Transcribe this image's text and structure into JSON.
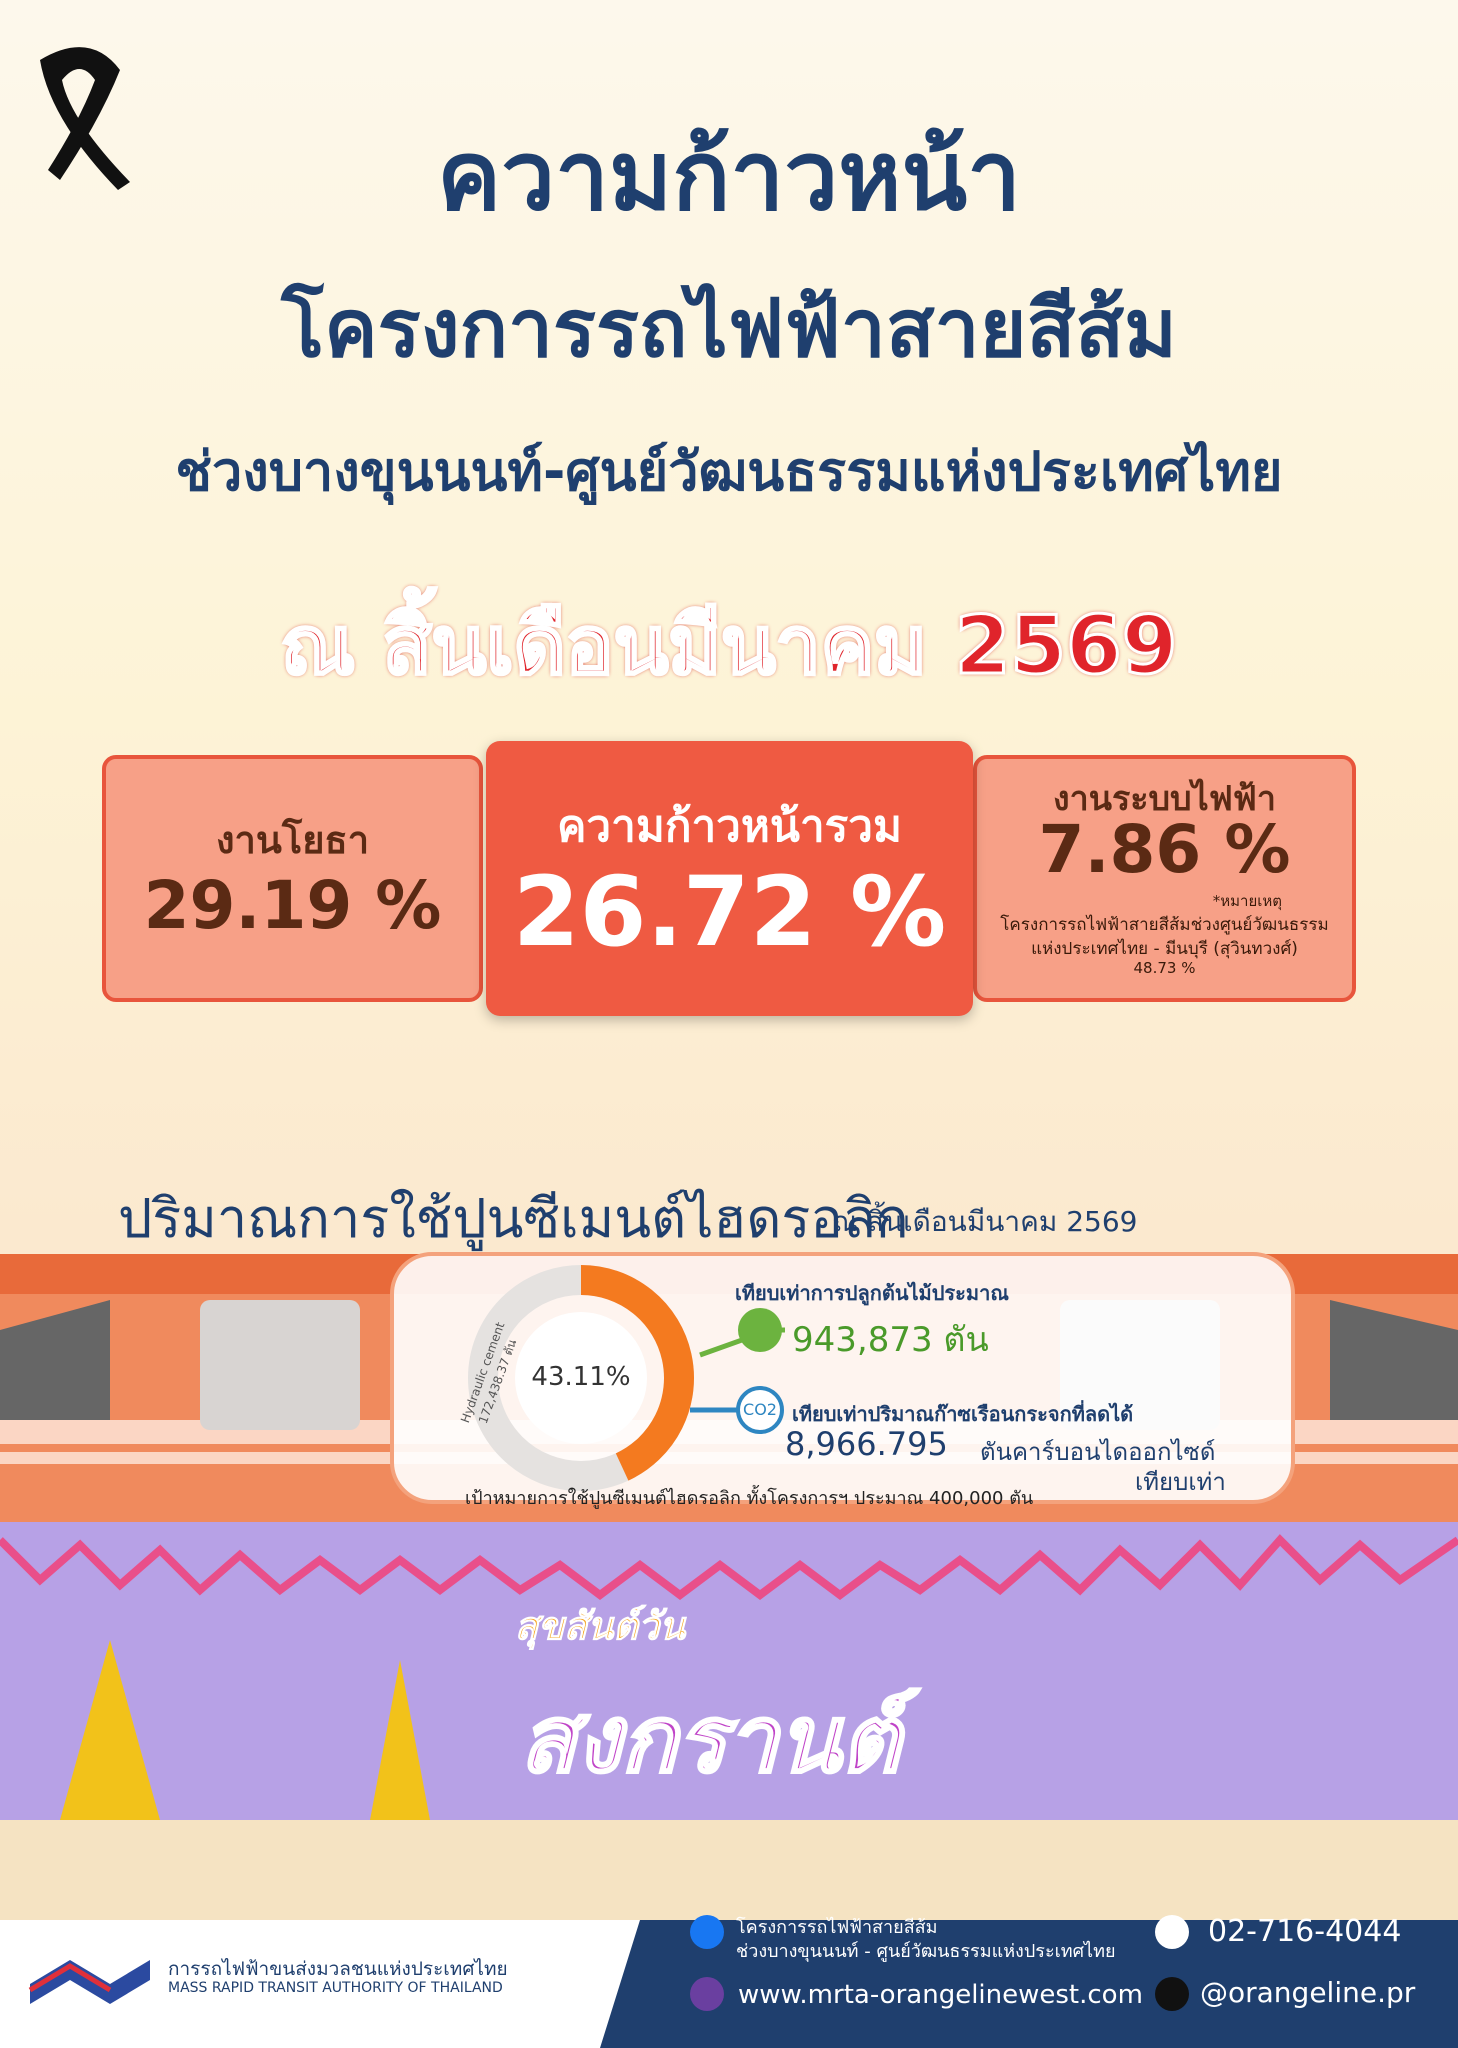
{
  "header": {
    "title_line1": "ความก้าวหน้า",
    "title_line2": "โครงการรถไฟฟ้าสายสีส้ม",
    "title_line3": "ช่วงบางขุนนนท์-ศูนย์วัฒนธรรมแห่งประเทศไทย",
    "date": "ณ สิ้นเดือนมีนาคม 2569"
  },
  "progress": {
    "civil": {
      "label": "งานโยธา",
      "value": "29.19 %"
    },
    "overall": {
      "label": "ความก้าวหน้ารวม",
      "value": "26.72 %"
    },
    "electrical": {
      "label": "งานระบบไฟฟ้า",
      "value": "7.86 %",
      "note_title": "*หมายเหตุ",
      "note_line1": "โครงการรถไฟฟ้าสายสีส้มช่วงศูนย์วัฒนธรรม",
      "note_line2": "แห่งประเทศไทย - มีนบุรี (สุวินทวงศ์)",
      "note_value": "48.73 %"
    }
  },
  "cement": {
    "heading": "ปริมาณการใช้ปูนซีเมนต์ไฮดรอลิก",
    "date": "ณ สิ้นเดือนมีนาคม 2569",
    "donut": {
      "value": 43.11,
      "label": "43.11%"
    },
    "donut_side1": "Hydraulic cement",
    "donut_side2": "172,438.37 ตัน",
    "tree_label": "เทียบเท่าการปลูกต้นไม้ประมาณ",
    "tree_value": "943,873 ตัน",
    "co2_icon": "CO2",
    "co2_label": "เทียบเท่าปริมาณก๊าซเรือนกระจกที่ลดได้",
    "co2_value": "8,966.795",
    "co2_unit": "ตันคาร์บอนไดออกไซด์",
    "co2_unit2": "เทียบเท่า",
    "target": "เป้าหมายการใช้ปูนซีเมนต์ไฮดรอลิก ทั้งโครงการฯ ประมาณ 400,000 ตัน"
  },
  "banner": {
    "line1": "สุขสันต์วัน",
    "line2": "สงกรานต์"
  },
  "footer": {
    "org_th": "การรถไฟฟ้าขนส่งมวลชนแห่งประเทศไทย",
    "org_en": "MASS RAPID TRANSIT AUTHORITY OF THAILAND",
    "facebook_line1": "โครงการรถไฟฟ้าสายสีส้ม",
    "facebook_line2": "ช่วงบางขุนนนท์ - ศูนย์วัฒนธรรมแห่งประเทศไทย",
    "website": "www.mrta-orangelinewest.com",
    "phone": "02-716-4044",
    "tiktok": "@orangeline.pr"
  }
}
